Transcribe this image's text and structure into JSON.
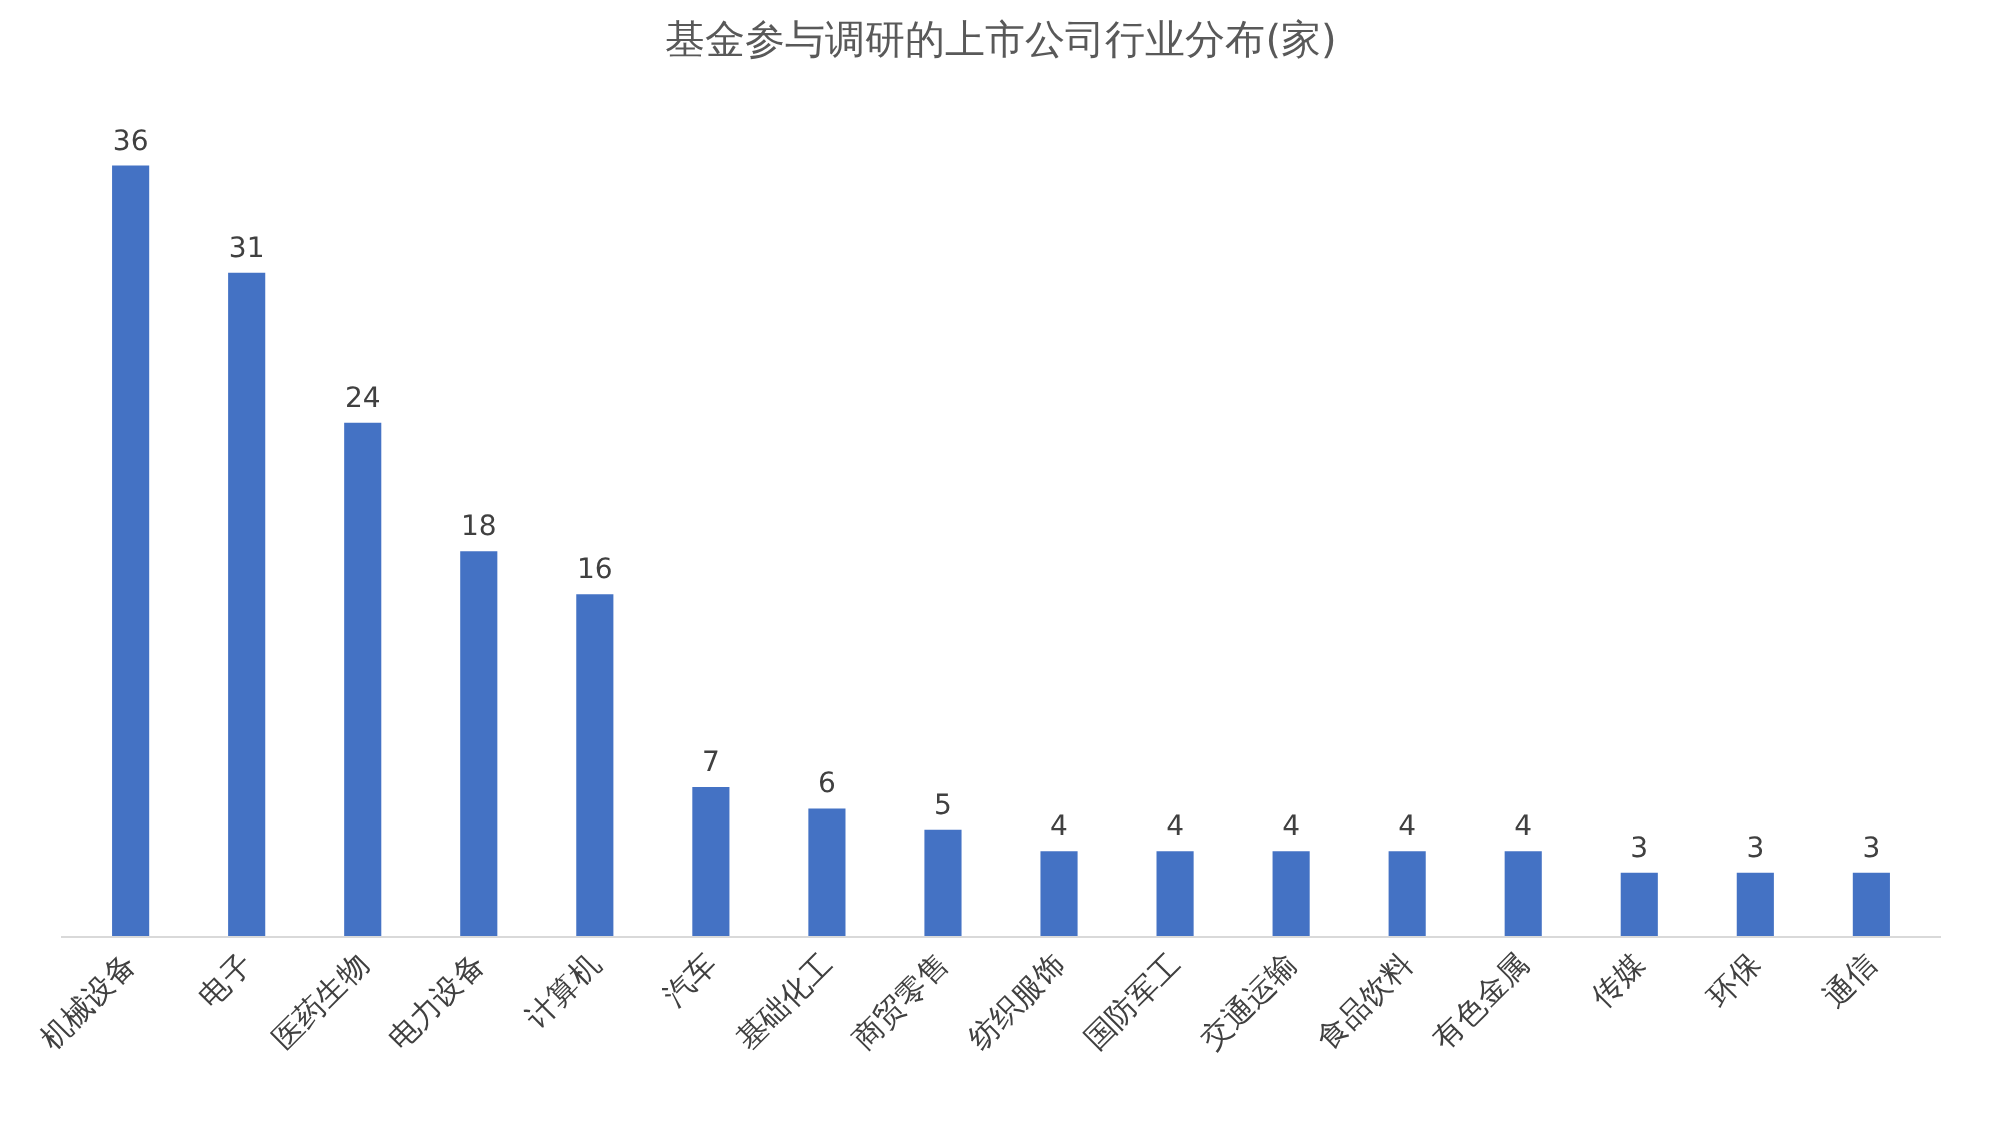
{
  "chart_data": {
    "type": "bar",
    "title": "基金参与调研的上市公司行业分布(家)",
    "categories": [
      "机械设备",
      "电子",
      "医药生物",
      "电力设备",
      "计算机",
      "汽车",
      "基础化工",
      "商贸零售",
      "纺织服饰",
      "国防军工",
      "交通运输",
      "食品饮料",
      "有色金属",
      "传媒",
      "环保",
      "通信"
    ],
    "values": [
      36,
      31,
      24,
      18,
      16,
      7,
      6,
      5,
      4,
      4,
      4,
      4,
      4,
      3,
      3,
      3
    ],
    "color": "#4472c4",
    "data_labels": true,
    "grid": false
  }
}
